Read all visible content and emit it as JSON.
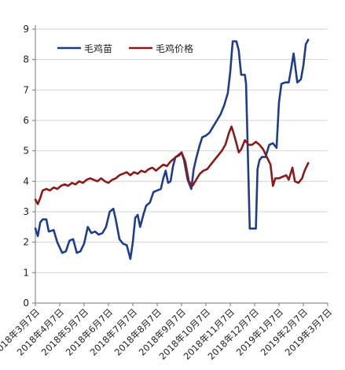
{
  "chart_data": {
    "type": "line",
    "title": "",
    "xlabel": "",
    "ylabel": "",
    "ylim": [
      0,
      9
    ],
    "yticks": [
      0,
      1,
      2,
      3,
      4,
      5,
      6,
      7,
      8,
      9
    ],
    "grid": "horizontal",
    "legend_position": "top-left",
    "categories": [
      "2018年3月7日",
      "2018年4月7日",
      "2018年5月7日",
      "2018年6月7日",
      "2018年7月7日",
      "2018年8月7日",
      "2018年9月7日",
      "2018年10月7日",
      "2018年11月7日",
      "2018年12月7日",
      "2019年1月7日",
      "2019年2月7日",
      "2019年3月7日"
    ],
    "xlim": [
      0,
      12
    ],
    "series": [
      {
        "name": "毛鸡苗",
        "color": "#1f3d8f",
        "points": [
          [
            0.0,
            2.45
          ],
          [
            0.1,
            2.2
          ],
          [
            0.2,
            2.65
          ],
          [
            0.3,
            2.75
          ],
          [
            0.45,
            2.75
          ],
          [
            0.55,
            2.35
          ],
          [
            0.75,
            2.4
          ],
          [
            0.9,
            2.0
          ],
          [
            1.1,
            1.65
          ],
          [
            1.25,
            1.7
          ],
          [
            1.4,
            2.05
          ],
          [
            1.55,
            2.1
          ],
          [
            1.7,
            1.65
          ],
          [
            1.85,
            1.7
          ],
          [
            2.0,
            1.95
          ],
          [
            2.15,
            2.5
          ],
          [
            2.3,
            2.3
          ],
          [
            2.45,
            2.35
          ],
          [
            2.6,
            2.25
          ],
          [
            2.75,
            2.3
          ],
          [
            2.9,
            2.5
          ],
          [
            3.05,
            3.0
          ],
          [
            3.2,
            3.1
          ],
          [
            3.3,
            2.75
          ],
          [
            3.45,
            2.1
          ],
          [
            3.6,
            1.95
          ],
          [
            3.75,
            1.9
          ],
          [
            3.9,
            1.45
          ],
          [
            4.0,
            2.0
          ],
          [
            4.1,
            2.8
          ],
          [
            4.2,
            2.9
          ],
          [
            4.3,
            2.5
          ],
          [
            4.45,
            2.95
          ],
          [
            4.55,
            3.2
          ],
          [
            4.7,
            3.3
          ],
          [
            4.85,
            3.65
          ],
          [
            5.0,
            3.7
          ],
          [
            5.15,
            3.75
          ],
          [
            5.25,
            4.1
          ],
          [
            5.35,
            4.35
          ],
          [
            5.45,
            3.95
          ],
          [
            5.55,
            4.0
          ],
          [
            5.65,
            4.5
          ],
          [
            5.75,
            4.8
          ],
          [
            5.9,
            4.85
          ],
          [
            6.0,
            4.95
          ],
          [
            6.1,
            4.7
          ],
          [
            6.25,
            4.05
          ],
          [
            6.4,
            3.75
          ],
          [
            6.5,
            4.4
          ],
          [
            6.6,
            4.75
          ],
          [
            6.75,
            5.2
          ],
          [
            6.85,
            5.45
          ],
          [
            7.0,
            5.5
          ],
          [
            7.15,
            5.6
          ],
          [
            7.3,
            5.8
          ],
          [
            7.45,
            6.0
          ],
          [
            7.6,
            6.2
          ],
          [
            7.75,
            6.5
          ],
          [
            7.9,
            6.9
          ],
          [
            8.0,
            7.6
          ],
          [
            8.1,
            8.6
          ],
          [
            8.25,
            8.6
          ],
          [
            8.35,
            8.3
          ],
          [
            8.45,
            7.5
          ],
          [
            8.6,
            7.5
          ],
          [
            8.65,
            7.2
          ],
          [
            8.72,
            5.0
          ],
          [
            8.8,
            2.45
          ],
          [
            9.05,
            2.45
          ],
          [
            9.12,
            4.4
          ],
          [
            9.2,
            4.7
          ],
          [
            9.3,
            4.8
          ],
          [
            9.45,
            4.8
          ],
          [
            9.6,
            5.2
          ],
          [
            9.75,
            5.25
          ],
          [
            9.9,
            5.1
          ],
          [
            10.0,
            6.6
          ],
          [
            10.1,
            7.2
          ],
          [
            10.25,
            7.25
          ],
          [
            10.4,
            7.25
          ],
          [
            10.5,
            7.7
          ],
          [
            10.6,
            8.2
          ],
          [
            10.75,
            7.25
          ],
          [
            10.9,
            7.35
          ],
          [
            11.0,
            7.8
          ],
          [
            11.1,
            8.5
          ],
          [
            11.2,
            8.65
          ]
        ]
      },
      {
        "name": "毛鸡价格",
        "color": "#8b1a1a",
        "points": [
          [
            0.0,
            3.4
          ],
          [
            0.1,
            3.25
          ],
          [
            0.2,
            3.45
          ],
          [
            0.3,
            3.7
          ],
          [
            0.45,
            3.75
          ],
          [
            0.6,
            3.7
          ],
          [
            0.75,
            3.8
          ],
          [
            0.9,
            3.75
          ],
          [
            1.05,
            3.85
          ],
          [
            1.2,
            3.9
          ],
          [
            1.35,
            3.85
          ],
          [
            1.5,
            3.95
          ],
          [
            1.65,
            3.9
          ],
          [
            1.8,
            4.0
          ],
          [
            1.95,
            3.95
          ],
          [
            2.1,
            4.05
          ],
          [
            2.25,
            4.1
          ],
          [
            2.4,
            4.05
          ],
          [
            2.55,
            4.0
          ],
          [
            2.7,
            4.1
          ],
          [
            2.85,
            4.0
          ],
          [
            3.0,
            3.95
          ],
          [
            3.15,
            4.05
          ],
          [
            3.3,
            4.1
          ],
          [
            3.45,
            4.2
          ],
          [
            3.6,
            4.25
          ],
          [
            3.75,
            4.3
          ],
          [
            3.9,
            4.2
          ],
          [
            4.05,
            4.3
          ],
          [
            4.2,
            4.25
          ],
          [
            4.35,
            4.35
          ],
          [
            4.5,
            4.3
          ],
          [
            4.65,
            4.4
          ],
          [
            4.8,
            4.45
          ],
          [
            4.95,
            4.35
          ],
          [
            5.1,
            4.45
          ],
          [
            5.25,
            4.55
          ],
          [
            5.4,
            4.5
          ],
          [
            5.55,
            4.65
          ],
          [
            5.7,
            4.75
          ],
          [
            5.85,
            4.85
          ],
          [
            6.0,
            4.95
          ],
          [
            6.15,
            4.65
          ],
          [
            6.3,
            4.0
          ],
          [
            6.45,
            3.85
          ],
          [
            6.6,
            4.05
          ],
          [
            6.75,
            4.25
          ],
          [
            6.9,
            4.35
          ],
          [
            7.05,
            4.4
          ],
          [
            7.2,
            4.55
          ],
          [
            7.35,
            4.7
          ],
          [
            7.5,
            4.85
          ],
          [
            7.65,
            5.0
          ],
          [
            7.8,
            5.2
          ],
          [
            7.95,
            5.6
          ],
          [
            8.05,
            5.8
          ],
          [
            8.15,
            5.55
          ],
          [
            8.25,
            5.25
          ],
          [
            8.35,
            4.95
          ],
          [
            8.45,
            5.05
          ],
          [
            8.6,
            5.35
          ],
          [
            8.75,
            5.2
          ],
          [
            8.9,
            5.2
          ],
          [
            9.05,
            5.3
          ],
          [
            9.2,
            5.2
          ],
          [
            9.35,
            5.05
          ],
          [
            9.5,
            4.8
          ],
          [
            9.65,
            4.55
          ],
          [
            9.75,
            3.85
          ],
          [
            9.85,
            4.1
          ],
          [
            10.0,
            4.1
          ],
          [
            10.15,
            4.15
          ],
          [
            10.3,
            4.2
          ],
          [
            10.4,
            4.05
          ],
          [
            10.55,
            4.45
          ],
          [
            10.65,
            4.0
          ],
          [
            10.8,
            3.95
          ],
          [
            10.95,
            4.1
          ],
          [
            11.05,
            4.35
          ],
          [
            11.2,
            4.6
          ]
        ]
      }
    ]
  }
}
